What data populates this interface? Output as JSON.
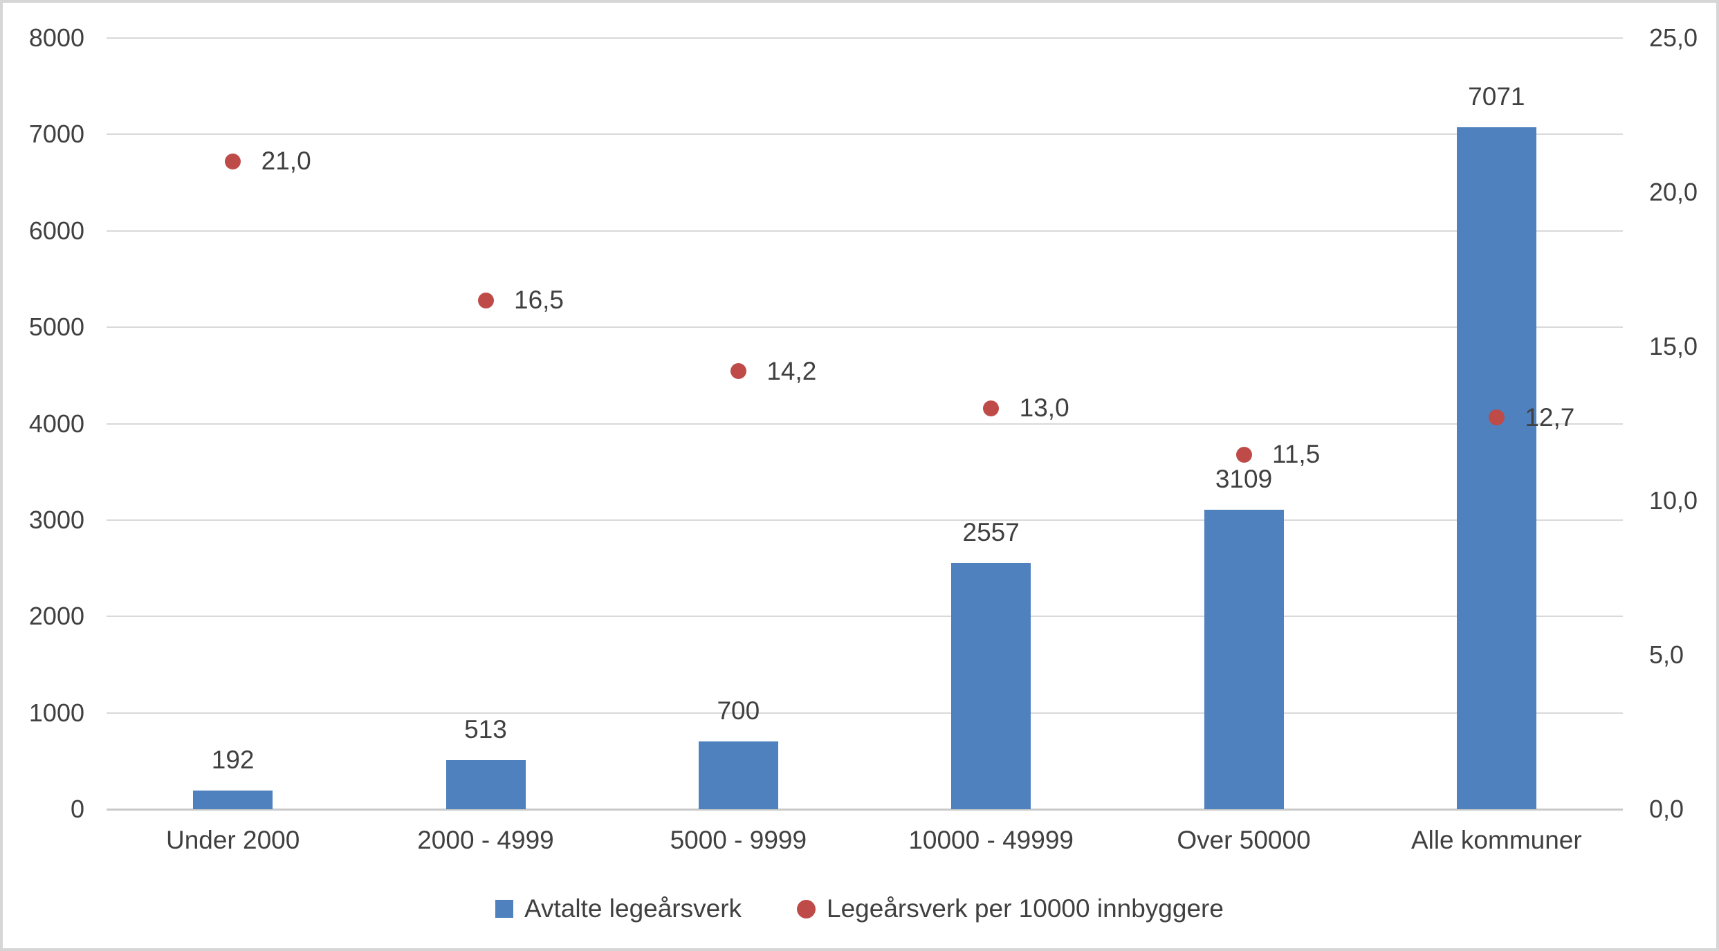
{
  "chart_data": {
    "type": "combo",
    "subtypes": [
      "bar",
      "scatter"
    ],
    "categories": [
      "Under 2000",
      "2000 - 4999",
      "5000 - 9999",
      "10000 - 49999",
      "Over 50000",
      "Alle kommuner"
    ],
    "series": [
      {
        "name": "Avtalte legeårsverk",
        "type": "bar",
        "axis": "left",
        "color": "#4E81BD",
        "values": [
          192,
          513,
          700,
          2557,
          3109,
          7071
        ],
        "data_labels": [
          "192",
          "513",
          "700",
          "2557",
          "3109",
          "7071"
        ]
      },
      {
        "name": "Legeårsverk per 10000 innbyggere",
        "type": "scatter",
        "axis": "right",
        "color": "#BE4B48",
        "values": [
          21.0,
          16.5,
          14.2,
          13.0,
          11.5,
          12.7
        ],
        "data_labels": [
          "21,0",
          "16,5",
          "14,2",
          "13,0",
          "11,5",
          "12,7"
        ]
      }
    ],
    "axes": {
      "left": {
        "min": 0,
        "max": 8000,
        "step": 1000,
        "tick_labels": [
          "0",
          "1000",
          "2000",
          "3000",
          "4000",
          "5000",
          "6000",
          "7000",
          "8000"
        ]
      },
      "right": {
        "min": 0,
        "max": 25,
        "step": 5,
        "tick_labels": [
          "0,0",
          "5,0",
          "10,0",
          "15,0",
          "20,0",
          "25,0"
        ]
      }
    },
    "grid": true,
    "legend_position": "bottom"
  },
  "styles": {
    "text_color": "#404040",
    "gridline_color": "#D9D9D9",
    "axisline_color": "#C9C9C9",
    "bar_color": "#4E81BD",
    "dot_color": "#BE4B48",
    "background": "#FFFFFF",
    "border_color": "#D6D6D6"
  }
}
